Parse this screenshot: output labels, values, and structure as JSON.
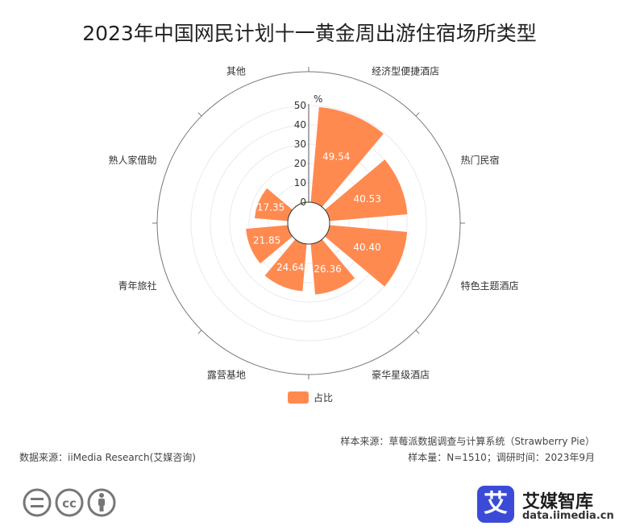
{
  "title": "2023年中国网民计划十一黄金周出游住宿场所类型",
  "chart_data": {
    "type": "polar-bar",
    "title": "2023年中国网民计划十一黄金周出游住宿场所类型",
    "unit": "%",
    "radial_ticks": [
      0,
      10,
      20,
      30,
      40,
      50
    ],
    "rlim": [
      0,
      50
    ],
    "categories": [
      "经济型便捷酒店",
      "热门民宿",
      "特色主题酒店",
      "豪华星级酒店",
      "露营基地",
      "青年旅社",
      "熟人家借助",
      "其他"
    ],
    "series": [
      {
        "name": "占比",
        "values": [
          49.54,
          40.53,
          40.4,
          26.36,
          24.64,
          21.85,
          17.35,
          0.4
        ],
        "color": "#ff8a50"
      }
    ],
    "legend": "bottom-center"
  },
  "footer": {
    "sample_source": "样本来源：草莓派数据调查与计算系统（Strawberry Pie）",
    "sample_info": "样本量：N=1510；调研时间：2023年9月",
    "data_source": "数据来源：iiMedia Research(艾媒咨询)"
  },
  "brand": {
    "logo_char": "艾",
    "name": "艾媒智库",
    "url": "data.iimedia.cn"
  }
}
